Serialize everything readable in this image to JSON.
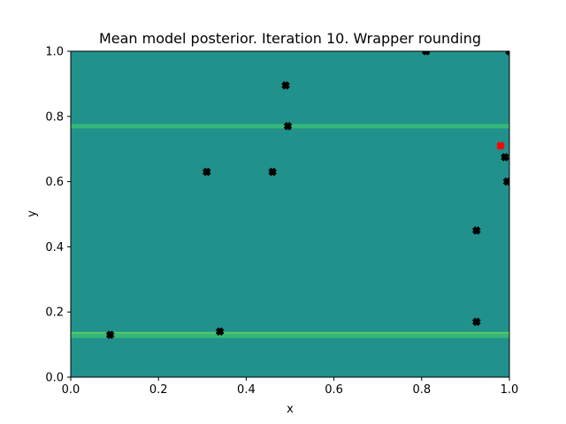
{
  "chart_data": {
    "type": "scatter",
    "title": "Mean model posterior. Iteration 10. Wrapper rounding",
    "xlabel": "x",
    "ylabel": "y",
    "xlim": [
      0,
      1
    ],
    "ylim": [
      0,
      1
    ],
    "xticks": [
      "0.0",
      "0.2",
      "0.4",
      "0.6",
      "0.8",
      "1.0"
    ],
    "yticks": [
      "0.0",
      "0.2",
      "0.4",
      "0.6",
      "0.8",
      "1.0"
    ],
    "grid": false,
    "background_field": {
      "base_color": "#21918c",
      "bands": [
        {
          "y": 0.77,
          "color": "#35b779"
        },
        {
          "y": 0.132,
          "color": "#5ec962"
        },
        {
          "y": 0.127,
          "color": "#35b779"
        }
      ]
    },
    "series": [
      {
        "marker": "X",
        "color": "#000000",
        "points": [
          {
            "x": 0.09,
            "y": 0.13
          },
          {
            "x": 0.34,
            "y": 0.14
          },
          {
            "x": 0.31,
            "y": 0.63
          },
          {
            "x": 0.46,
            "y": 0.63
          },
          {
            "x": 0.49,
            "y": 0.895
          },
          {
            "x": 0.495,
            "y": 0.77
          },
          {
            "x": 0.81,
            "y": 1.0
          },
          {
            "x": 1.0,
            "y": 1.0
          },
          {
            "x": 0.99,
            "y": 0.675
          },
          {
            "x": 0.995,
            "y": 0.6
          },
          {
            "x": 0.925,
            "y": 0.45
          },
          {
            "x": 0.925,
            "y": 0.17
          }
        ]
      },
      {
        "marker": "X",
        "color": "#ff0000",
        "points": [
          {
            "x": 0.98,
            "y": 0.71
          }
        ]
      }
    ]
  }
}
